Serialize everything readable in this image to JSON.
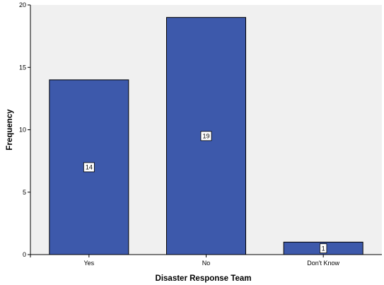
{
  "chart_data": {
    "type": "bar",
    "categories": [
      "Yes",
      "No",
      "Don't Know"
    ],
    "values": [
      14,
      19,
      1
    ],
    "data_labels": [
      "14",
      "19",
      "1"
    ],
    "xlabel": "Disaster Response Team",
    "ylabel": "Frequency",
    "ylim": [
      0,
      20
    ],
    "yticks": [
      0,
      5,
      10,
      15,
      20
    ],
    "grid": false,
    "colors": {
      "plot_background": "#f0f0f0",
      "bar_fill": "#3d59ab",
      "bar_stroke": "#000000",
      "label_box": "#ffffff"
    }
  }
}
